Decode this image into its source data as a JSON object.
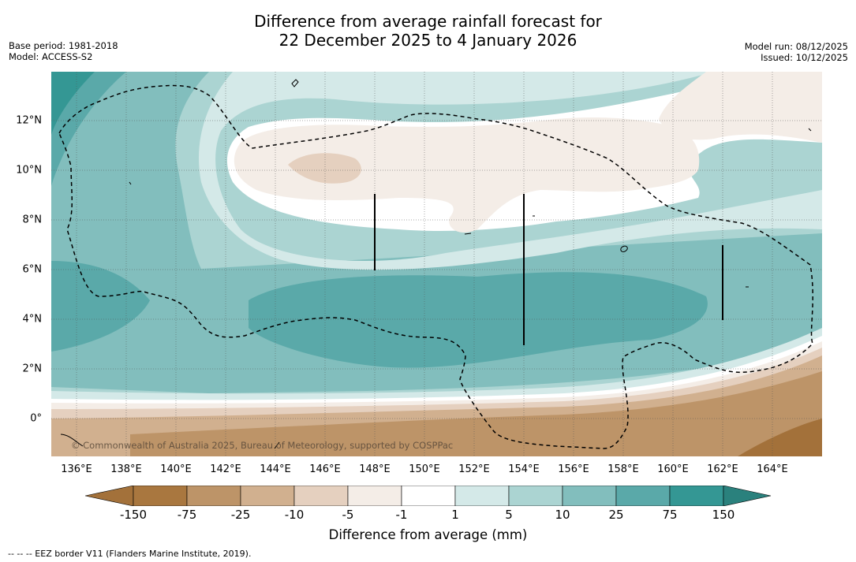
{
  "header": {
    "title_line1": "Difference from average rainfall forecast for",
    "title_line2": "22 December 2025 to 4 January 2026",
    "base_period": "Base period: 1981-2018",
    "model": "Model: ACCESS-S2",
    "model_run": "Model run: 08/12/2025",
    "issued": "Issued: 10/12/2025"
  },
  "map": {
    "longitude_labels": [
      "136°E",
      "138°E",
      "140°E",
      "142°E",
      "144°E",
      "146°E",
      "148°E",
      "150°E",
      "152°E",
      "154°E",
      "156°E",
      "158°E",
      "160°E",
      "162°E",
      "164°E"
    ],
    "latitude_labels": [
      "12°N",
      "10°N",
      "8°N",
      "6°N",
      "4°N",
      "2°N",
      "0°"
    ],
    "copyright": "© Commonwealth of Australia 2025, Bureau of Meteorology, supported by COSPPac",
    "colors": {
      "minus150": "#a3713a",
      "minus75": "#a9773f",
      "minus25": "#bd9468",
      "minus10": "#d1b08f",
      "minus5": "#e5d0bf",
      "minus1": "#f4ede7",
      "zero": "#ffffff",
      "plus1": "#d4e9e8",
      "plus5": "#abd4d2",
      "plus10": "#82bebd",
      "plus25": "#5aa9a9",
      "plus75": "#349794",
      "plus150": "#2a817d"
    }
  },
  "colorbar": {
    "ticks": [
      "-150",
      "-75",
      "-25",
      "-10",
      "-5",
      "-1",
      "1",
      "5",
      "10",
      "25",
      "75",
      "150"
    ],
    "label": "Difference from average (mm)",
    "colors": [
      "#a9773f",
      "#bd9468",
      "#d1b08f",
      "#e5d0bf",
      "#f4ede7",
      "#ffffff",
      "#d4e9e8",
      "#abd4d2",
      "#82bebd",
      "#5aa9a9",
      "#349794"
    ]
  },
  "footer": {
    "eez_legend": "--  --  -- EEZ border V11 (Flanders Marine Institute, 2019)."
  }
}
